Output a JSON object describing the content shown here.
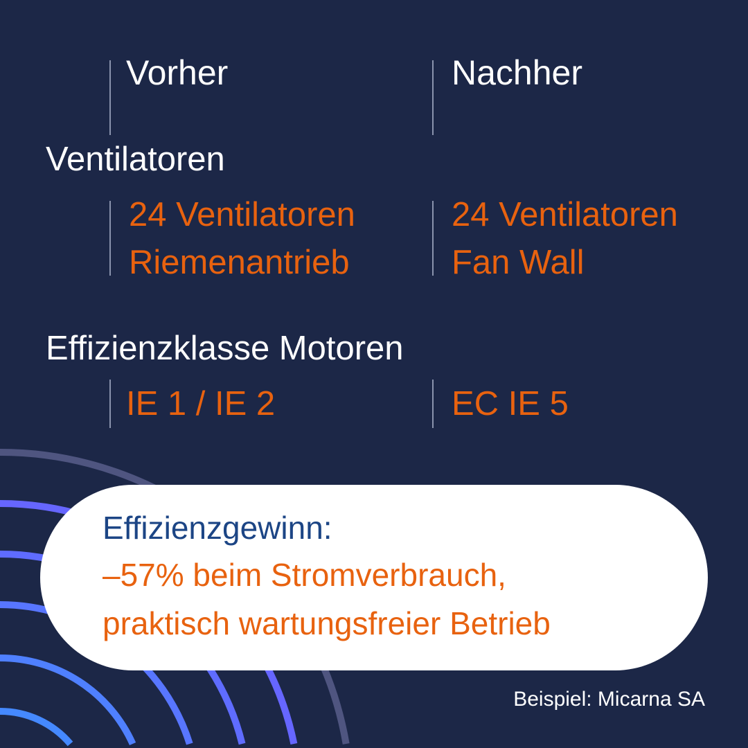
{
  "header": {
    "before": "Vorher",
    "after": "Nachher"
  },
  "sections": [
    {
      "title": "Ventilatoren",
      "before": [
        "24 Ventilatoren",
        "Riemenantrieb"
      ],
      "after": [
        "24 Ventilatoren",
        "Fan Wall"
      ]
    },
    {
      "title": "Effizienzklasse Motoren",
      "before": [
        "IE 1 / IE 2"
      ],
      "after": [
        "EC IE 5"
      ]
    }
  ],
  "result": {
    "label": "Effizienzgewinn:",
    "lines": [
      "–57% beim Stromverbrauch,",
      "praktisch wartungsfreier Betrieb"
    ]
  },
  "footer": "Beispiel: Micarna SA",
  "colors": {
    "background": "#1c2747",
    "accent": "#e8620f",
    "label_blue": "#1c4585",
    "arcs": [
      "#4f5580",
      "#6666ff",
      "#5f6cff",
      "#5876ff",
      "#4f80ff",
      "#4589ff"
    ]
  }
}
